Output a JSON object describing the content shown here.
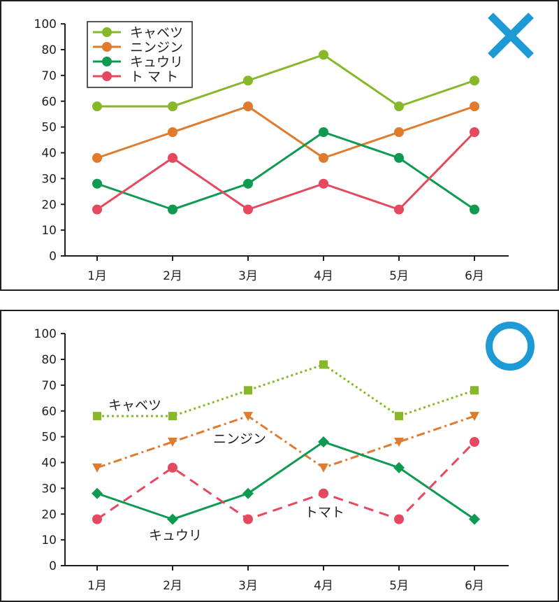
{
  "colors": {
    "cabbage": "#86b82a",
    "carrot": "#e07b2e",
    "cucumber": "#0e9a50",
    "tomato": "#e5485f",
    "cross_mark": "#1d9ad6",
    "circle_mark": "#1d9ad6",
    "frame": "#231f20"
  },
  "panels": {
    "bad": {
      "verdict_symbol": "✕",
      "verdict_meaning": "bad-example"
    },
    "good": {
      "verdict_symbol": "○",
      "verdict_meaning": "good-example"
    }
  },
  "chart_data": [
    {
      "type": "line",
      "style": "legend",
      "categories": [
        "1月",
        "2月",
        "3月",
        "4月",
        "5月",
        "6月"
      ],
      "y_ticks": [
        0,
        10,
        20,
        30,
        40,
        50,
        60,
        70,
        80,
        100
      ],
      "ylim": [
        0,
        100
      ],
      "legend": {
        "placement": "top-left"
      },
      "series": [
        {
          "key": "cabbage",
          "name": "キャベツ",
          "values": [
            58,
            58,
            68,
            78,
            58,
            68
          ],
          "marker": "circle",
          "dash": "solid"
        },
        {
          "key": "carrot",
          "name": "ニンジン",
          "values": [
            38,
            48,
            58,
            38,
            48,
            58
          ],
          "marker": "circle",
          "dash": "solid"
        },
        {
          "key": "cucumber",
          "name": "キュウリ",
          "values": [
            28,
            18,
            28,
            48,
            38,
            18
          ],
          "marker": "circle",
          "dash": "solid"
        },
        {
          "key": "tomato",
          "name": "ト マ ト",
          "values": [
            18,
            38,
            18,
            28,
            18,
            48
          ],
          "marker": "circle",
          "dash": "solid"
        }
      ]
    },
    {
      "type": "line",
      "style": "direct-labels",
      "categories": [
        "1月",
        "2月",
        "3月",
        "4月",
        "5月",
        "6月"
      ],
      "y_ticks": [
        0,
        10,
        20,
        30,
        40,
        50,
        60,
        70,
        80,
        100
      ],
      "ylim": [
        0,
        100
      ],
      "series": [
        {
          "key": "cabbage",
          "name": "キャベツ",
          "values": [
            58,
            58,
            68,
            78,
            58,
            68
          ],
          "marker": "square",
          "dash": "dotted"
        },
        {
          "key": "carrot",
          "name": "ニンジン",
          "values": [
            38,
            48,
            58,
            38,
            48,
            58
          ],
          "marker": "triangle-down",
          "dash": "dashdot"
        },
        {
          "key": "cucumber",
          "name": "キュウリ",
          "values": [
            28,
            18,
            28,
            48,
            38,
            18
          ],
          "marker": "diamond",
          "dash": "solid"
        },
        {
          "key": "tomato",
          "name": "トマト",
          "values": [
            18,
            38,
            18,
            28,
            18,
            48
          ],
          "marker": "circle",
          "dash": "dashed"
        }
      ]
    }
  ]
}
